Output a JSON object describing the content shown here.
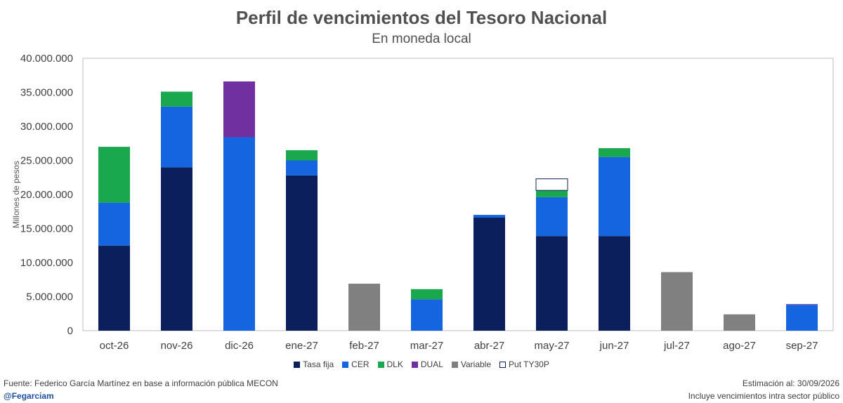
{
  "header": {
    "title": "Perfil de vencimientos del Tesoro Nacional",
    "subtitle": "En moneda local"
  },
  "footer": {
    "source": "Fuente: Federico García Martínez en base a información pública MECON",
    "handle": "@Fegarciam",
    "date": "Estimación al: 30/09/2026",
    "note": "Incluye vencimientos intra sector público"
  },
  "chart_data": {
    "type": "bar",
    "stacked": true,
    "title": "Perfil de vencimientos del Tesoro Nacional",
    "subtitle": "En moneda local",
    "ylabel": "Millones de pesos",
    "xlabel": "",
    "ylim": [
      0,
      40000000
    ],
    "yticks": [
      0,
      5000000,
      10000000,
      15000000,
      20000000,
      25000000,
      30000000,
      35000000,
      40000000
    ],
    "ytick_labels": [
      "0",
      "5.000.000",
      "10.000.000",
      "15.000.000",
      "20.000.000",
      "25.000.000",
      "30.000.000",
      "35.000.000",
      "40.000.000"
    ],
    "grid": false,
    "legend_position": "bottom",
    "categories": [
      "oct-26",
      "nov-26",
      "dic-26",
      "ene-27",
      "feb-27",
      "mar-27",
      "abr-27",
      "may-27",
      "jun-27",
      "jul-27",
      "ago-27",
      "sep-27"
    ],
    "series": [
      {
        "name": "Tasa fija",
        "color": "#0b1f5c",
        "values": [
          12500000,
          24000000,
          0,
          22800000,
          0,
          0,
          16600000,
          13900000,
          13900000,
          0,
          0,
          0
        ]
      },
      {
        "name": "CER",
        "color": "#1565e0",
        "values": [
          6300000,
          8900000,
          28400000,
          2200000,
          0,
          4600000,
          400000,
          5700000,
          11600000,
          0,
          0,
          3800000
        ]
      },
      {
        "name": "DLK",
        "color": "#1aa84f",
        "values": [
          8200000,
          2200000,
          0,
          1500000,
          0,
          1500000,
          0,
          1000000,
          1300000,
          0,
          0,
          0
        ]
      },
      {
        "name": "DUAL",
        "color": "#7030a0",
        "values": [
          0,
          0,
          8200000,
          0,
          0,
          0,
          0,
          0,
          0,
          0,
          0,
          100000
        ]
      },
      {
        "name": "Variable",
        "color": "#808080",
        "values": [
          0,
          0,
          0,
          0,
          6900000,
          0,
          0,
          0,
          0,
          8600000,
          2400000,
          0
        ]
      },
      {
        "name": "Put TY30P",
        "color": "#ffffff",
        "values": [
          0,
          0,
          0,
          0,
          0,
          0,
          0,
          1700000,
          0,
          0,
          0,
          0
        ]
      }
    ]
  }
}
